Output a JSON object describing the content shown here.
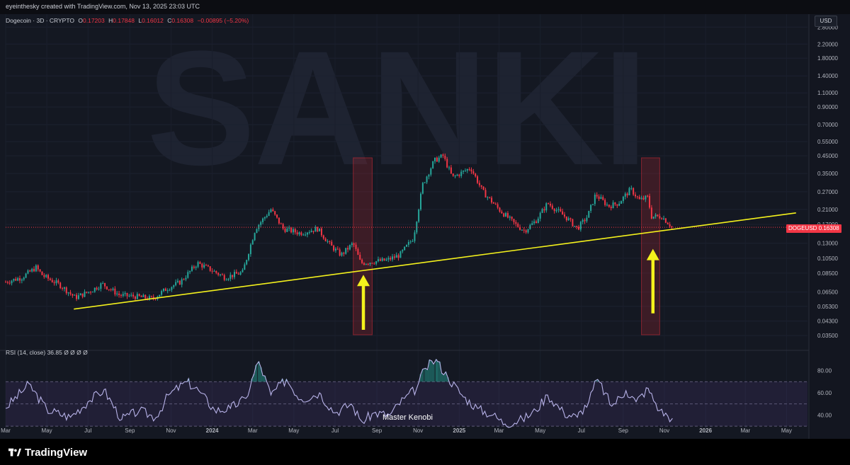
{
  "header": {
    "credit": "eyeinthesky created with TradingView.com, Nov 13, 2025 23:03 UTC"
  },
  "legend": {
    "symbol": "Dogecoin · 3D · CRYPTO",
    "open_label": "O",
    "open": "0.17203",
    "high_label": "H",
    "high": "0.17848",
    "low_label": "L",
    "low": "0.16012",
    "close_label": "C",
    "close": "0.16308",
    "change": "−0.00895 (−5.20%)"
  },
  "currency": "USD",
  "price_tag": {
    "ticker": "DOGEUSD",
    "value": "0.16308"
  },
  "watermark": "SANKI",
  "rsi_legend": "RSI (14, close)  36.85  Ø  Ø  Ø  Ø",
  "caption": "Master Kenobi",
  "footer": {
    "brand": "TradingView"
  },
  "colors": {
    "up": "#26a69a",
    "down": "#f23645",
    "trendline": "#f4f11c",
    "arrow": "#f4f11c",
    "rsi_line": "#b8b3e9",
    "rsi_band": "#7e57c2",
    "highlight": "#b22833"
  },
  "chart_data": [
    {
      "type": "candlestick",
      "title": "Dogecoin · 3D · CRYPTO",
      "y_scale": "log",
      "ylim": [
        0.033,
        3.2
      ],
      "y_ticks": [
        "2.80000",
        "2.20000",
        "1.80000",
        "1.40000",
        "1.10000",
        "0.90000",
        "0.70000",
        "0.55000",
        "0.45000",
        "0.35000",
        "0.27000",
        "0.21000",
        "0.17000",
        "0.13000",
        "0.10500",
        "0.08500",
        "0.06500",
        "0.05300",
        "0.04300",
        "0.03500"
      ],
      "x_ticks": [
        "Mar",
        "May",
        "Jul",
        "Sep",
        "Nov",
        "2024",
        "Mar",
        "May",
        "Jul",
        "Sep",
        "Nov",
        "2025",
        "Mar",
        "May",
        "Jul",
        "Sep",
        "Nov",
        "2026",
        "Mar",
        "May"
      ],
      "x_range": [
        "2023-03-01",
        "2026-06-01"
      ],
      "close_path": [
        [
          "2023-03-01",
          0.075
        ],
        [
          "2023-03-25",
          0.08
        ],
        [
          "2023-04-15",
          0.092
        ],
        [
          "2023-04-25",
          0.082
        ],
        [
          "2023-05-20",
          0.072
        ],
        [
          "2023-06-12",
          0.06
        ],
        [
          "2023-07-05",
          0.066
        ],
        [
          "2023-07-22",
          0.073
        ],
        [
          "2023-08-17",
          0.062
        ],
        [
          "2023-09-10",
          0.061
        ],
        [
          "2023-10-05",
          0.059
        ],
        [
          "2023-10-25",
          0.068
        ],
        [
          "2023-11-15",
          0.075
        ],
        [
          "2023-12-10",
          0.098
        ],
        [
          "2023-12-28",
          0.09
        ],
        [
          "2024-01-20",
          0.08
        ],
        [
          "2024-02-15",
          0.086
        ],
        [
          "2024-03-05",
          0.16
        ],
        [
          "2024-03-28",
          0.21
        ],
        [
          "2024-04-15",
          0.16
        ],
        [
          "2024-05-10",
          0.15
        ],
        [
          "2024-06-05",
          0.16
        ],
        [
          "2024-06-25",
          0.125
        ],
        [
          "2024-07-10",
          0.11
        ],
        [
          "2024-07-28",
          0.13
        ],
        [
          "2024-08-08",
          0.098
        ],
        [
          "2024-08-25",
          0.1
        ],
        [
          "2024-09-15",
          0.102
        ],
        [
          "2024-10-05",
          0.11
        ],
        [
          "2024-10-25",
          0.14
        ],
        [
          "2024-11-08",
          0.3
        ],
        [
          "2024-11-25",
          0.42
        ],
        [
          "2024-12-08",
          0.45
        ],
        [
          "2024-12-22",
          0.33
        ],
        [
          "2025-01-18",
          0.38
        ],
        [
          "2025-02-05",
          0.27
        ],
        [
          "2025-03-01",
          0.21
        ],
        [
          "2025-03-25",
          0.17
        ],
        [
          "2025-04-08",
          0.155
        ],
        [
          "2025-04-25",
          0.18
        ],
        [
          "2025-05-12",
          0.23
        ],
        [
          "2025-06-10",
          0.185
        ],
        [
          "2025-06-25",
          0.16
        ],
        [
          "2025-07-10",
          0.19
        ],
        [
          "2025-07-22",
          0.26
        ],
        [
          "2025-08-10",
          0.22
        ],
        [
          "2025-08-25",
          0.23
        ],
        [
          "2025-09-12",
          0.28
        ],
        [
          "2025-09-25",
          0.24
        ],
        [
          "2025-10-08",
          0.25
        ],
        [
          "2025-10-12",
          0.19
        ],
        [
          "2025-10-28",
          0.19
        ],
        [
          "2025-11-13",
          0.163
        ]
      ],
      "last_price": 0.16308,
      "trendline": [
        [
          "2023-06-10",
          0.051
        ],
        [
          "2026-05-15",
          0.2
        ]
      ],
      "highlight_zones": [
        [
          "2024-07-28",
          "2024-08-25"
        ],
        [
          "2025-09-28",
          "2025-10-25"
        ]
      ],
      "arrows": [
        {
          "date": "2024-08-12",
          "from": 0.038,
          "to": 0.083
        },
        {
          "date": "2025-10-15",
          "from": 0.048,
          "to": 0.12
        }
      ],
      "current_price_line": 0.16308
    },
    {
      "type": "line",
      "title": "RSI (14, close)",
      "value_label": "36.85",
      "ylim": [
        25,
        95
      ],
      "y_ticks": [
        "80.00",
        "60.00",
        "40.00"
      ],
      "bands": [
        30,
        50,
        70
      ],
      "x": [
        "2023-03-01",
        "2023-04-05",
        "2023-05-01",
        "2023-06-05",
        "2023-07-01",
        "2023-07-25",
        "2023-08-20",
        "2023-09-15",
        "2023-10-10",
        "2023-10-28",
        "2023-11-25",
        "2023-12-12",
        "2024-01-05",
        "2024-01-28",
        "2024-02-20",
        "2024-03-10",
        "2024-03-28",
        "2024-04-20",
        "2024-05-12",
        "2024-06-08",
        "2024-07-01",
        "2024-07-25",
        "2024-08-10",
        "2024-08-28",
        "2024-09-20",
        "2024-10-12",
        "2024-10-30",
        "2024-11-12",
        "2024-11-28",
        "2024-12-15",
        "2025-01-05",
        "2025-01-28",
        "2025-02-20",
        "2025-03-10",
        "2025-04-05",
        "2025-04-25",
        "2025-05-12",
        "2025-06-05",
        "2025-06-25",
        "2025-07-12",
        "2025-07-25",
        "2025-08-15",
        "2025-09-05",
        "2025-09-20",
        "2025-10-08",
        "2025-10-25",
        "2025-11-13"
      ],
      "values": [
        46,
        68,
        45,
        38,
        52,
        63,
        36,
        44,
        38,
        58,
        70,
        62,
        44,
        46,
        55,
        88,
        58,
        72,
        54,
        60,
        42,
        50,
        34,
        42,
        40,
        55,
        64,
        82,
        90,
        74,
        58,
        46,
        40,
        32,
        36,
        44,
        58,
        42,
        38,
        52,
        72,
        48,
        62,
        52,
        64,
        44,
        37
      ]
    }
  ]
}
